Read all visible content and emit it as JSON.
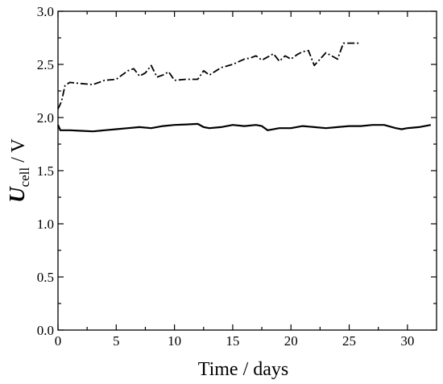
{
  "chart_data": {
    "type": "line",
    "xlabel": "Time / days",
    "ylabel": {
      "symbol": "U",
      "subscript": "cell",
      "unit": " / V"
    },
    "xlim": [
      0,
      32.5
    ],
    "ylim": [
      0.0,
      3.0
    ],
    "x_ticks": [
      0,
      5,
      10,
      15,
      20,
      25,
      30
    ],
    "y_ticks": [
      0.0,
      0.5,
      1.0,
      1.5,
      2.0,
      2.5,
      3.0
    ],
    "y_tick_labels": [
      "0.0",
      "0.5",
      "1.0",
      "1.5",
      "2.0",
      "2.5",
      "3.0"
    ],
    "grid": false,
    "legend": "none",
    "series": [
      {
        "style": "solid",
        "color": "#000000",
        "x": [
          0,
          0.2,
          0.5,
          1,
          2,
          3,
          4,
          5,
          6,
          7,
          8,
          9,
          10,
          11,
          12,
          12.5,
          13,
          14,
          15,
          16,
          17,
          17.5,
          18,
          19,
          20,
          21,
          22,
          23,
          24,
          25,
          26,
          27,
          28,
          29,
          29.5,
          30,
          31,
          32
        ],
        "y": [
          1.93,
          1.88,
          1.88,
          1.88,
          1.875,
          1.87,
          1.88,
          1.89,
          1.9,
          1.91,
          1.9,
          1.92,
          1.93,
          1.935,
          1.94,
          1.91,
          1.9,
          1.91,
          1.93,
          1.92,
          1.93,
          1.92,
          1.88,
          1.9,
          1.9,
          1.92,
          1.91,
          1.9,
          1.91,
          1.92,
          1.92,
          1.93,
          1.93,
          1.9,
          1.89,
          1.9,
          1.91,
          1.93
        ]
      },
      {
        "style": "dash-dot",
        "color": "#000000",
        "x": [
          0,
          0.3,
          0.6,
          1,
          2,
          3,
          4,
          5,
          5.5,
          6,
          6.5,
          7,
          7.5,
          8,
          8.5,
          9,
          9.5,
          10,
          11,
          12,
          12.5,
          13,
          14,
          15,
          16,
          16.5,
          17,
          17.5,
          18,
          18.5,
          19,
          19.5,
          20,
          20.5,
          21,
          21.5,
          22,
          22.5,
          23,
          23.5,
          24,
          24.5,
          25,
          26
        ],
        "y": [
          2.08,
          2.15,
          2.3,
          2.33,
          2.32,
          2.31,
          2.35,
          2.36,
          2.4,
          2.44,
          2.46,
          2.39,
          2.42,
          2.49,
          2.38,
          2.4,
          2.43,
          2.35,
          2.36,
          2.36,
          2.44,
          2.4,
          2.47,
          2.5,
          2.55,
          2.56,
          2.58,
          2.54,
          2.57,
          2.6,
          2.53,
          2.58,
          2.55,
          2.59,
          2.62,
          2.63,
          2.49,
          2.55,
          2.61,
          2.58,
          2.55,
          2.7,
          2.7,
          2.7
        ]
      }
    ]
  }
}
